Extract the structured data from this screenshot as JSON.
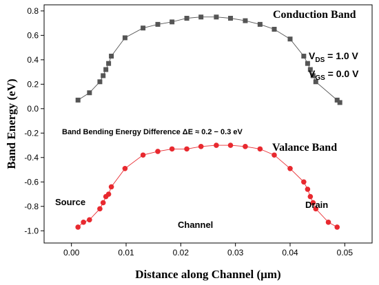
{
  "chart_data": {
    "type": "line",
    "xlabel": "Distance along Channel (µm)",
    "ylabel": "Band Energy (eV)",
    "xlim": [
      -0.005,
      0.055
    ],
    "ylim": [
      -1.1,
      0.85
    ],
    "x_ticks": [
      0.0,
      0.01,
      0.02,
      0.03,
      0.04,
      0.05
    ],
    "x_tick_labels": [
      "0.00",
      "0.01",
      "0.02",
      "0.03",
      "0.04",
      "0.05"
    ],
    "y_ticks": [
      0.8,
      0.6,
      0.4,
      0.2,
      0.0,
      -0.2,
      -0.4,
      -0.6,
      -0.8,
      -1.0
    ],
    "y_tick_labels": [
      "0.8",
      "0.6",
      "0.4",
      "0.2",
      "0.0",
      "-0.2",
      "-0.4",
      "-0.6",
      "-0.8",
      "-1.0"
    ],
    "grid": false,
    "series": [
      {
        "name": "Conduction Band",
        "marker": "square",
        "color": "#555555",
        "x": [
          0.0012,
          0.0033,
          0.0052,
          0.0058,
          0.0063,
          0.0068,
          0.0073,
          0.0098,
          0.0131,
          0.0158,
          0.0184,
          0.0211,
          0.0237,
          0.0265,
          0.0291,
          0.0318,
          0.0345,
          0.0371,
          0.04,
          0.0425,
          0.0432,
          0.0437,
          0.0442,
          0.0447,
          0.0486,
          0.0491
        ],
        "values": [
          0.07,
          0.13,
          0.22,
          0.27,
          0.32,
          0.37,
          0.43,
          0.58,
          0.66,
          0.69,
          0.71,
          0.74,
          0.75,
          0.75,
          0.74,
          0.72,
          0.69,
          0.65,
          0.57,
          0.43,
          0.37,
          0.32,
          0.27,
          0.22,
          0.07,
          0.05
        ]
      },
      {
        "name": "Valance Band",
        "marker": "circle",
        "color": "#e8292f",
        "x": [
          0.0012,
          0.0022,
          0.0033,
          0.0052,
          0.0058,
          0.0063,
          0.0068,
          0.0073,
          0.0098,
          0.0131,
          0.0158,
          0.0184,
          0.0211,
          0.0237,
          0.0265,
          0.0291,
          0.0318,
          0.0345,
          0.0371,
          0.04,
          0.0425,
          0.0432,
          0.0437,
          0.0442,
          0.0447,
          0.047,
          0.0486
        ],
        "values": [
          -0.97,
          -0.93,
          -0.91,
          -0.82,
          -0.77,
          -0.72,
          -0.7,
          -0.64,
          -0.49,
          -0.38,
          -0.35,
          -0.33,
          -0.33,
          -0.31,
          -0.3,
          -0.3,
          -0.31,
          -0.33,
          -0.38,
          -0.49,
          -0.6,
          -0.66,
          -0.72,
          -0.77,
          -0.82,
          -0.93,
          -0.97
        ]
      }
    ],
    "annotations": {
      "conduction_band": "Conduction Band",
      "valence_band": "Valance Band",
      "vds": "V",
      "vds_sub": "DS",
      "vds_value": " = 1.0 V",
      "vgs": "V",
      "vgs_sub": "GS",
      "vgs_value": " = 0.0 V",
      "band_bending": "Band Bending Energy Difference ΔE ≈ 0.2 − 0.3 eV",
      "source": "Source",
      "drain": "Drain",
      "channel": "Channel"
    }
  }
}
